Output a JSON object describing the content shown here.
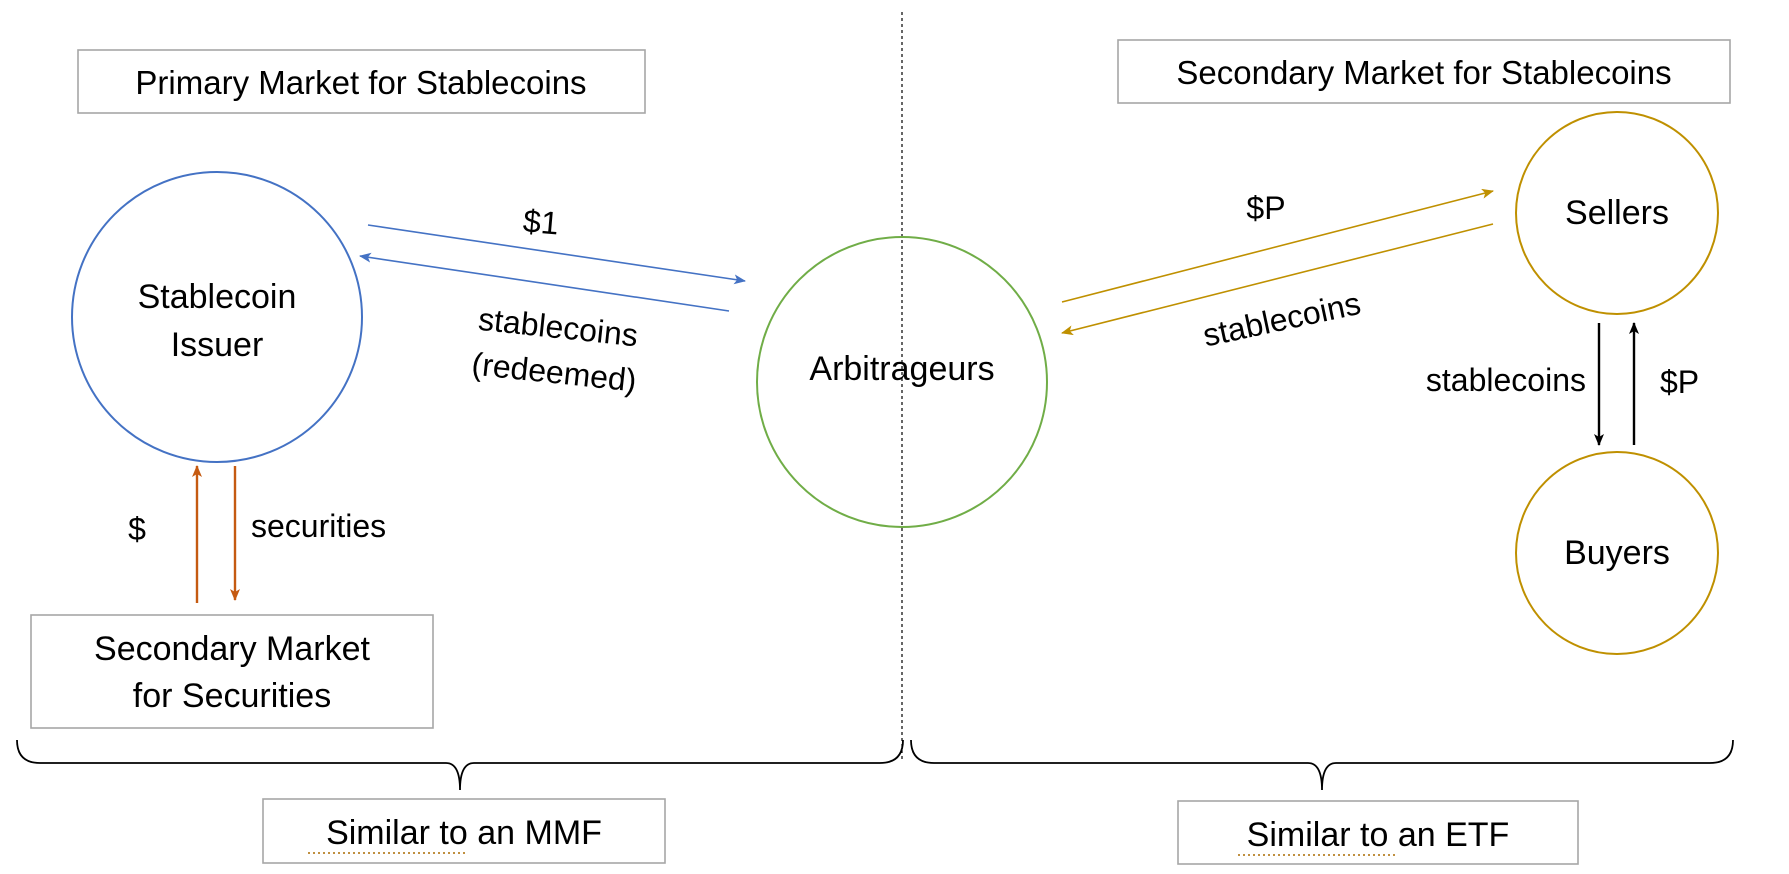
{
  "boxes": {
    "primary_title": "Primary Market for Stablecoins",
    "secondary_title": "Secondary Market for Stablecoins",
    "securities_market": [
      "Secondary Market",
      "for Securities"
    ],
    "mmf_note": {
      "underlined": "Similar to",
      "rest": " an MMF"
    },
    "etf_note": {
      "underlined": "Similar to",
      "rest": " an ETF"
    }
  },
  "nodes": {
    "issuer": [
      "Stablecoin",
      "Issuer"
    ],
    "arbitrageurs": "Arbitrageurs",
    "sellers": "Sellers",
    "buyers": "Buyers"
  },
  "edges": {
    "issuer_to_arb": "$1",
    "arb_to_issuer": [
      "stablecoins",
      "(redeemed)"
    ],
    "arb_to_sellers": "$P",
    "sellers_to_arb": "stablecoins",
    "market_to_issuer": "$",
    "issuer_to_market": "securities",
    "sellers_to_buyers": "stablecoins",
    "buyers_to_sellers": "$P"
  },
  "colors": {
    "issuer": "#4472c4",
    "arbitrageurs": "#70ad47",
    "sellers_buyers": "#bf9000",
    "securities_flow": "#c55a11",
    "trade_flow": "#000000",
    "box_border": "#a6a6a6",
    "spellcheck_underline": "#c09040"
  }
}
